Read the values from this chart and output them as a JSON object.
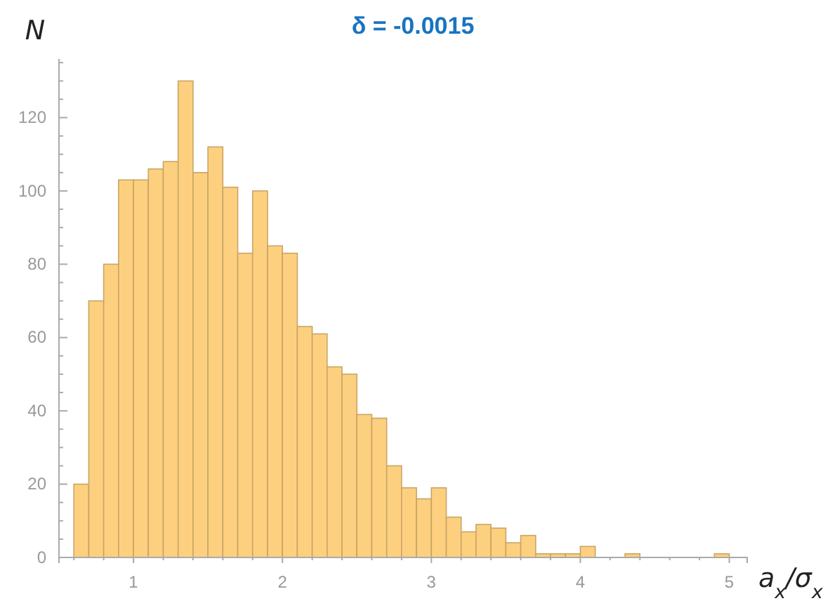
{
  "chart_data": {
    "type": "histogram",
    "title": "δ = -0.0015",
    "xlabel": "a$_{x}$/σ$_{x}$",
    "ylabel": "N",
    "bins": [
      0.6,
      0.7,
      0.8,
      0.9,
      1.0,
      1.1,
      1.2,
      1.3,
      1.4,
      1.5,
      1.6,
      1.7,
      1.8,
      1.9,
      2.0,
      2.1,
      2.2,
      2.3,
      2.4,
      2.5,
      2.6,
      2.7,
      2.8,
      2.9,
      3.0,
      3.1,
      3.2,
      3.3,
      3.4,
      3.5,
      3.6,
      3.7,
      3.8,
      3.9,
      4.0,
      4.1,
      4.2,
      4.3,
      4.4,
      4.5,
      4.6,
      4.7,
      4.8,
      4.9,
      5.0
    ],
    "values": [
      20,
      70,
      80,
      103,
      103,
      106,
      108,
      130,
      105,
      112,
      101,
      83,
      100,
      85,
      83,
      63,
      61,
      52,
      50,
      39,
      38,
      25,
      19,
      16,
      19,
      11,
      7,
      9,
      8,
      4,
      6,
      1,
      1,
      1,
      3,
      0,
      0,
      1,
      0,
      0,
      0,
      0,
      0,
      1
    ],
    "color": "#fdd07f",
    "xlim": [
      0.5,
      5.12
    ],
    "ylim": [
      0,
      136
    ],
    "xticks": [
      {
        "value": 0.6,
        "label": null
      },
      {
        "value": 0.8,
        "label": null
      },
      1,
      {
        "value": 1.2,
        "label": null
      },
      {
        "value": 1.4,
        "label": null
      },
      {
        "value": 1.6,
        "label": null
      },
      {
        "value": 1.8,
        "label": null
      },
      2,
      {
        "value": 2.2,
        "label": null
      },
      {
        "value": 2.4,
        "label": null
      },
      {
        "value": 2.6,
        "label": null
      },
      {
        "value": 2.8,
        "label": null
      },
      3,
      {
        "value": 3.2,
        "label": null
      },
      {
        "value": 3.4,
        "label": null
      },
      {
        "value": 3.6,
        "label": null
      },
      {
        "value": 3.8,
        "label": null
      },
      4,
      {
        "value": 4.2,
        "label": null
      },
      {
        "value": 4.4,
        "label": null
      },
      {
        "value": 4.6,
        "label": null
      },
      {
        "value": 4.8,
        "label": null
      },
      5
    ],
    "yticks": [
      0,
      {
        "value": 5,
        "label": null
      },
      {
        "value": 10,
        "label": null
      },
      {
        "value": 15,
        "label": null
      },
      20,
      {
        "value": 25,
        "label": null
      },
      {
        "value": 30,
        "label": null
      },
      {
        "value": 35,
        "label": null
      },
      40,
      {
        "value": 45,
        "label": null
      },
      {
        "value": 50,
        "label": null
      },
      {
        "value": 55,
        "label": null
      },
      60,
      {
        "value": 65,
        "label": null
      },
      {
        "value": 70,
        "label": null
      },
      {
        "value": 75,
        "label": null
      },
      80,
      {
        "value": 85,
        "label": null
      },
      {
        "value": 90,
        "label": null
      },
      {
        "value": 95,
        "label": null
      },
      100,
      {
        "value": 105,
        "label": null
      },
      {
        "value": 110,
        "label": null
      },
      {
        "value": 115,
        "label": null
      },
      120,
      {
        "value": 125,
        "label": null
      },
      {
        "value": 130,
        "label": null
      },
      {
        "value": 135,
        "label": null
      }
    ],
    "grid": false
  }
}
